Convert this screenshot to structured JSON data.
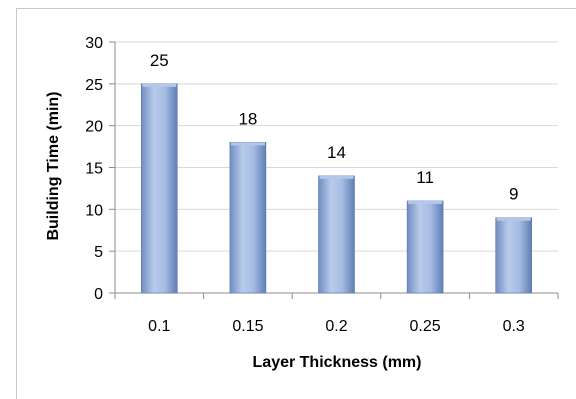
{
  "chart_data": {
    "type": "bar",
    "categories": [
      "0.1",
      "0.15",
      "0.2",
      "0.25",
      "0.3"
    ],
    "values": [
      25,
      18,
      14,
      11,
      9
    ],
    "data_labels": [
      "25",
      "18",
      "14",
      "11",
      "9"
    ],
    "title": "",
    "xlabel": "Layer Thickness (mm)",
    "ylabel": "Building Time (min)",
    "ylim": [
      0,
      30
    ],
    "yticks": [
      0,
      5,
      10,
      15,
      20,
      25,
      30
    ],
    "ytick_labels": [
      "0",
      "5",
      "10",
      "15",
      "20",
      "25",
      "30"
    ],
    "grid": true,
    "legend": "none",
    "colors": {
      "bar_light": "#c5d4ec",
      "bar_mid": "#8eaadb",
      "bar_dark": "#5f7fb5",
      "bar_top": "#b3c7e8",
      "axis": "#8c8c8c",
      "grid": "#d9d9d9",
      "text": "#000000"
    }
  }
}
